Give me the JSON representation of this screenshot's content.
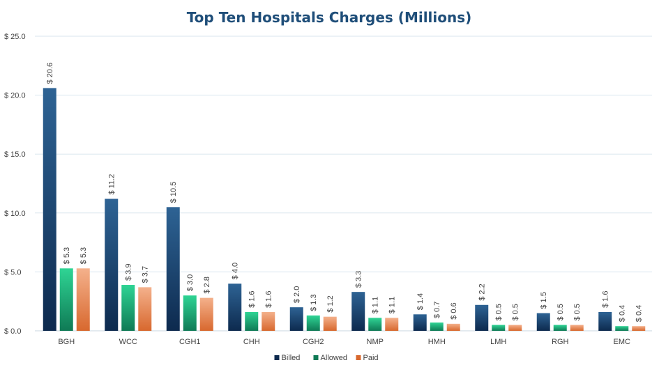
{
  "chart_data": {
    "type": "bar",
    "title": "Top Ten Hospitals Charges (Millions)",
    "xlabel": "",
    "ylabel": "",
    "categories": [
      "BGH",
      "WCC",
      "CGH1",
      "CHH",
      "CGH2",
      "NMP",
      "HMH",
      "LMH",
      "RGH",
      "EMC"
    ],
    "series": [
      {
        "name": "Billed",
        "values": [
          20.6,
          11.2,
          10.5,
          4.0,
          2.0,
          3.3,
          1.4,
          2.2,
          1.5,
          1.6
        ]
      },
      {
        "name": "Allowed",
        "values": [
          5.3,
          3.9,
          3.0,
          1.6,
          1.3,
          1.1,
          0.7,
          0.5,
          0.5,
          0.4
        ]
      },
      {
        "name": "Paid",
        "values": [
          5.3,
          3.7,
          2.8,
          1.6,
          1.2,
          1.1,
          0.6,
          0.5,
          0.5,
          0.4
        ]
      }
    ],
    "data_labels": [
      [
        "$ 20.6",
        "$ 11.2",
        "$ 10.5",
        "$ 4.0",
        "$ 2.0",
        "$ 3.3",
        "$ 1.4",
        "$ 2.2",
        "$ 1.5",
        "$ 1.6"
      ],
      [
        "$ 5.3",
        "$ 3.9",
        "$ 3.0",
        "$ 1.6",
        "$ 1.3",
        "$ 1.1",
        "$ 0.7",
        "$ 0.5",
        "$ 0.5",
        "$ 0.4"
      ],
      [
        "$ 5.3",
        "$ 3.7",
        "$ 2.8",
        "$ 1.6",
        "$ 1.2",
        "$ 1.1",
        "$ 0.6",
        "$ 0.5",
        "$ 0.5",
        "$ 0.4"
      ]
    ],
    "ylim": [
      0,
      25
    ],
    "yticks": [
      0,
      5,
      10,
      15,
      20,
      25
    ],
    "ytick_labels": [
      "$ 0.0",
      "$ 5.0",
      "$ 10.0",
      "$ 15.0",
      "$ 20.0",
      "$ 25.0"
    ],
    "grid": true,
    "legend_position": "bottom",
    "colors": {
      "Billed": {
        "light": "#2e6394",
        "dark": "#0d2a4e"
      },
      "Allowed": {
        "light": "#2fd494",
        "dark": "#0f7a55"
      },
      "Paid": {
        "light": "#f4b18c",
        "dark": "#d8682e"
      }
    }
  }
}
